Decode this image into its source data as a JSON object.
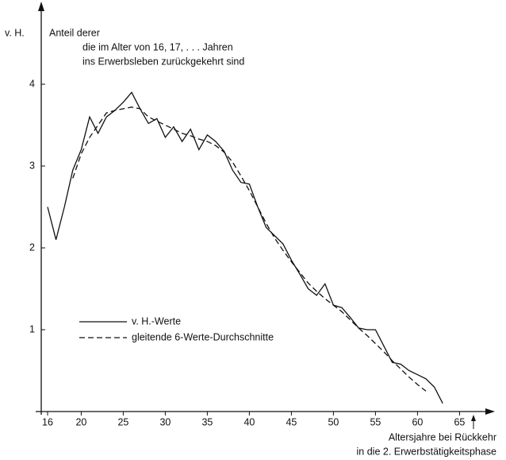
{
  "chart_data": {
    "type": "line",
    "ylabel": "v. H.",
    "title": [
      "Anteil derer",
      "die im Alter von 16, 17, . . . Jahren",
      "ins Erwerbsleben zurückgekehrt sind"
    ],
    "xlabel": [
      "Altersjahre bei Rückkehr",
      "in die 2. Erwerbstätigkeitsphase"
    ],
    "x": [
      16,
      17,
      18,
      19,
      20,
      21,
      22,
      23,
      24,
      25,
      26,
      27,
      28,
      29,
      30,
      31,
      32,
      33,
      34,
      35,
      36,
      37,
      38,
      39,
      40,
      41,
      42,
      43,
      44,
      45,
      46,
      47,
      48,
      49,
      50,
      51,
      52,
      53,
      54,
      55,
      56,
      57,
      58,
      59,
      60,
      61,
      62,
      63
    ],
    "series": [
      {
        "name": "v. H.-Werte",
        "color": "#111111",
        "dash": false,
        "values": [
          2.5,
          2.1,
          2.5,
          2.95,
          3.2,
          3.6,
          3.4,
          3.6,
          3.68,
          3.78,
          3.9,
          3.7,
          3.52,
          3.58,
          3.35,
          3.48,
          3.3,
          3.45,
          3.2,
          3.38,
          3.3,
          3.18,
          2.95,
          2.8,
          2.78,
          2.5,
          2.25,
          2.15,
          2.05,
          1.85,
          1.68,
          1.5,
          1.42,
          1.56,
          1.3,
          1.27,
          1.15,
          1.02,
          1.0,
          1.0,
          0.8,
          0.6,
          0.58,
          0.5,
          0.45,
          0.4,
          0.3,
          0.1
        ]
      },
      {
        "name": "gleitende 6-Werte-Durchschnitte",
        "color": "#111111",
        "dash": true,
        "values": [
          null,
          null,
          null,
          2.85,
          3.15,
          3.35,
          3.5,
          3.65,
          3.68,
          3.7,
          3.72,
          3.7,
          3.6,
          3.55,
          3.5,
          3.45,
          3.4,
          3.37,
          3.33,
          3.3,
          3.25,
          3.17,
          3.05,
          2.88,
          2.7,
          2.5,
          2.3,
          2.12,
          1.97,
          1.83,
          1.7,
          1.57,
          1.47,
          1.38,
          1.3,
          1.22,
          1.12,
          1.02,
          0.93,
          0.83,
          0.73,
          0.62,
          0.52,
          0.42,
          0.33,
          0.25,
          null,
          null
        ]
      }
    ],
    "xlim": [
      14.5,
      68.5
    ],
    "xticks": [
      16,
      20,
      25,
      30,
      35,
      40,
      45,
      50,
      55,
      60,
      65
    ],
    "ylim": [
      0,
      5
    ],
    "yticks": [
      1,
      2,
      3,
      4
    ],
    "grid": false
  }
}
